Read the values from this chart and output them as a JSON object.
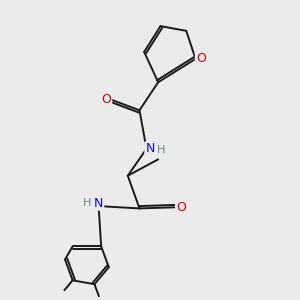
{
  "bg_color": "#ebebeb",
  "atom_colors": {
    "C": "#000000",
    "N": "#1010cc",
    "O": "#cc0000",
    "H": "#6a8a8a"
  },
  "bond_color": "#1a1a1a",
  "lw": 1.4
}
